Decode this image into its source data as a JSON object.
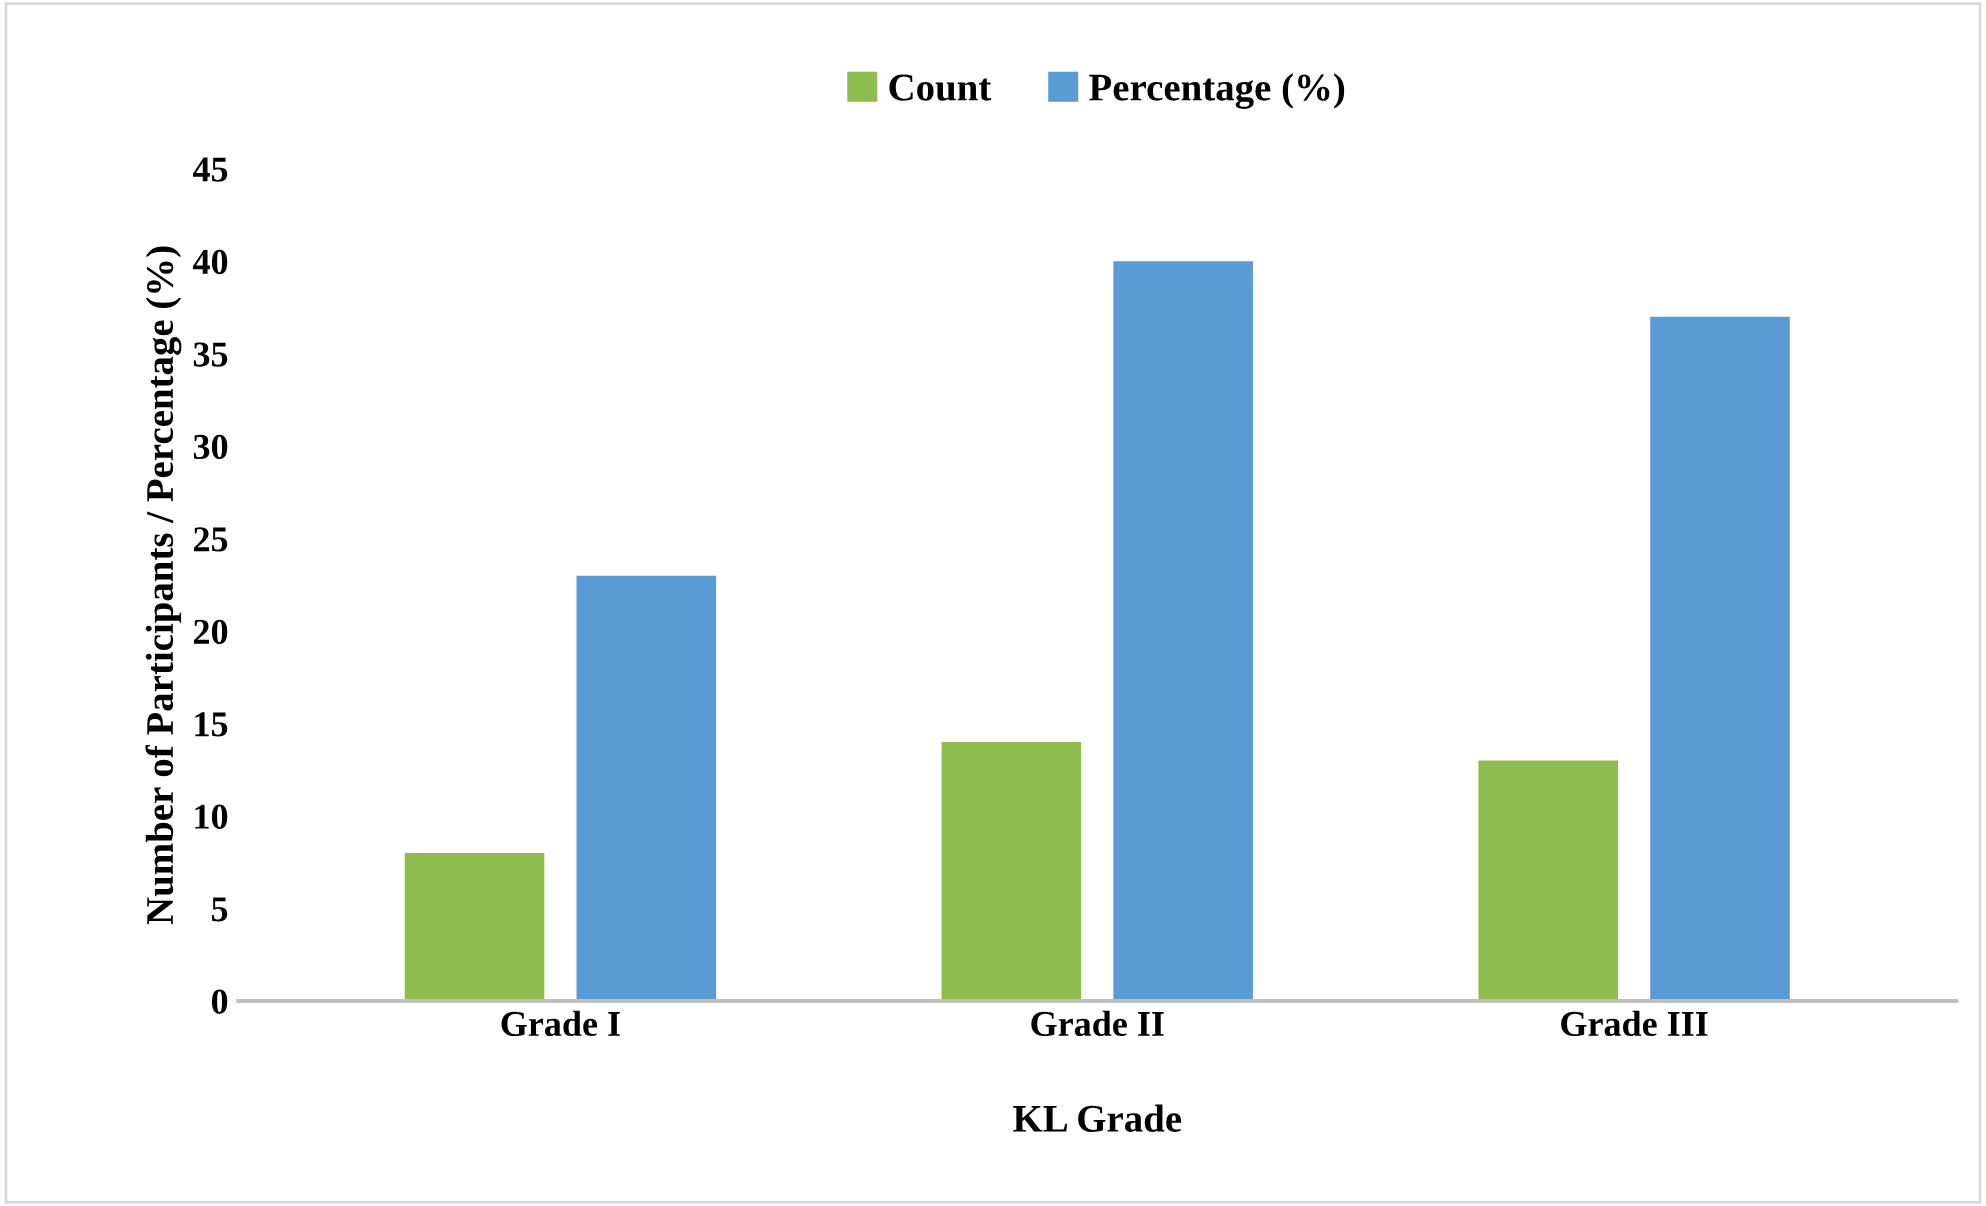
{
  "chart_data": {
    "type": "bar",
    "xlabel": "KL Grade",
    "ylabel": "Number of Participants / Percentage (%)",
    "categories": [
      "Grade I",
      "Grade II",
      "Grade III"
    ],
    "series": [
      {
        "name": "Count",
        "color": "#8cbd4e",
        "values": [
          8,
          14,
          13
        ]
      },
      {
        "name": "Percentage (%)",
        "color": "#5b9bd5",
        "values": [
          23,
          40,
          37
        ]
      }
    ],
    "ylim": [
      0,
      45
    ],
    "yticks": [
      0,
      5,
      10,
      15,
      20,
      25,
      30,
      35,
      40,
      45
    ],
    "grid": false,
    "legend": "top"
  }
}
